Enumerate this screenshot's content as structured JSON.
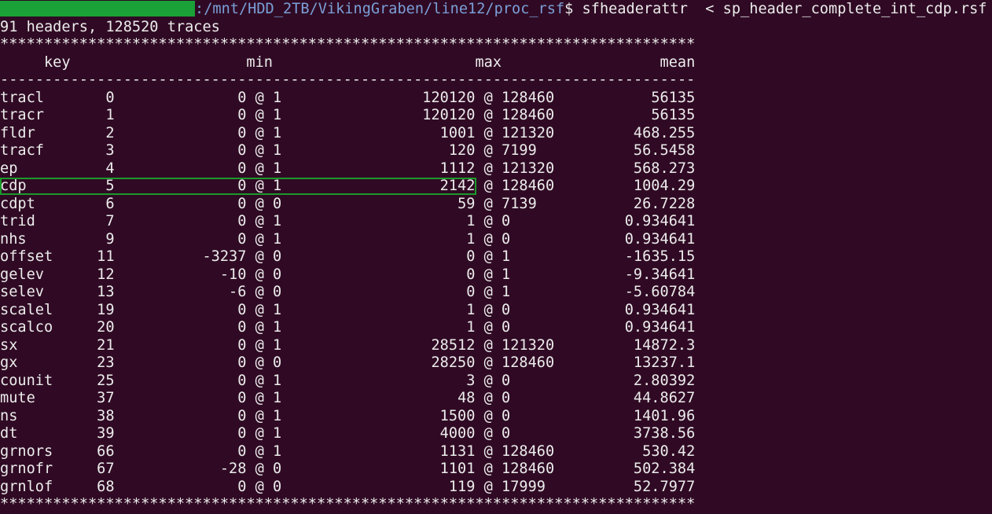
{
  "prompt": {
    "path": ":/mnt/HDD_2TB/VikingGraben/line12/proc_rsf",
    "command": "$ sfheaderattr  < sp_header_complete_int_cdp.rsf"
  },
  "summary": "91 headers, 128520 traces",
  "separator_stars": "*******************************************************************************",
  "separator_dashes": "-------------------------------------------------------------------------------",
  "columns": {
    "key": "key",
    "min": "min",
    "max": "max",
    "mean": "mean"
  },
  "at_symbol": "@",
  "highlighted_row": "cdp",
  "highlight_color": "#1a9a2a",
  "rows": [
    {
      "key": "tracl",
      "index": "0",
      "min": "0",
      "min_at": "1",
      "max": "120120",
      "max_at": "128460",
      "mean": "56135"
    },
    {
      "key": "tracr",
      "index": "1",
      "min": "0",
      "min_at": "1",
      "max": "120120",
      "max_at": "128460",
      "mean": "56135"
    },
    {
      "key": "fldr",
      "index": "2",
      "min": "0",
      "min_at": "1",
      "max": "1001",
      "max_at": "121320",
      "mean": "468.255"
    },
    {
      "key": "tracf",
      "index": "3",
      "min": "0",
      "min_at": "1",
      "max": "120",
      "max_at": "7199",
      "mean": "56.5458"
    },
    {
      "key": "ep",
      "index": "4",
      "min": "0",
      "min_at": "1",
      "max": "1112",
      "max_at": "121320",
      "mean": "568.273"
    },
    {
      "key": "cdp",
      "index": "5",
      "min": "0",
      "min_at": "1",
      "max": "2142",
      "max_at": "128460",
      "mean": "1004.29"
    },
    {
      "key": "cdpt",
      "index": "6",
      "min": "0",
      "min_at": "0",
      "max": "59",
      "max_at": "7139",
      "mean": "26.7228"
    },
    {
      "key": "trid",
      "index": "7",
      "min": "0",
      "min_at": "1",
      "max": "1",
      "max_at": "0",
      "mean": "0.934641"
    },
    {
      "key": "nhs",
      "index": "9",
      "min": "0",
      "min_at": "1",
      "max": "1",
      "max_at": "0",
      "mean": "0.934641"
    },
    {
      "key": "offset",
      "index": "11",
      "min": "-3237",
      "min_at": "0",
      "max": "0",
      "max_at": "1",
      "mean": "-1635.15"
    },
    {
      "key": "gelev",
      "index": "12",
      "min": "-10",
      "min_at": "0",
      "max": "0",
      "max_at": "1",
      "mean": "-9.34641"
    },
    {
      "key": "selev",
      "index": "13",
      "min": "-6",
      "min_at": "0",
      "max": "0",
      "max_at": "1",
      "mean": "-5.60784"
    },
    {
      "key": "scalel",
      "index": "19",
      "min": "0",
      "min_at": "1",
      "max": "1",
      "max_at": "0",
      "mean": "0.934641"
    },
    {
      "key": "scalco",
      "index": "20",
      "min": "0",
      "min_at": "1",
      "max": "1",
      "max_at": "0",
      "mean": "0.934641"
    },
    {
      "key": "sx",
      "index": "21",
      "min": "0",
      "min_at": "1",
      "max": "28512",
      "max_at": "121320",
      "mean": "14872.3"
    },
    {
      "key": "gx",
      "index": "23",
      "min": "0",
      "min_at": "0",
      "max": "28250",
      "max_at": "128460",
      "mean": "13237.1"
    },
    {
      "key": "counit",
      "index": "25",
      "min": "0",
      "min_at": "1",
      "max": "3",
      "max_at": "0",
      "mean": "2.80392"
    },
    {
      "key": "mute",
      "index": "37",
      "min": "0",
      "min_at": "1",
      "max": "48",
      "max_at": "0",
      "mean": "44.8627"
    },
    {
      "key": "ns",
      "index": "38",
      "min": "0",
      "min_at": "1",
      "max": "1500",
      "max_at": "0",
      "mean": "1401.96"
    },
    {
      "key": "dt",
      "index": "39",
      "min": "0",
      "min_at": "1",
      "max": "4000",
      "max_at": "0",
      "mean": "3738.56"
    },
    {
      "key": "grnors",
      "index": "66",
      "min": "0",
      "min_at": "1",
      "max": "1131",
      "max_at": "128460",
      "mean": "530.42"
    },
    {
      "key": "grnofr",
      "index": "67",
      "min": "-28",
      "min_at": "0",
      "max": "1101",
      "max_at": "128460",
      "mean": "502.384"
    },
    {
      "key": "grnlof",
      "index": "68",
      "min": "0",
      "min_at": "0",
      "max": "119",
      "max_at": "17999",
      "mean": "52.7977"
    }
  ]
}
